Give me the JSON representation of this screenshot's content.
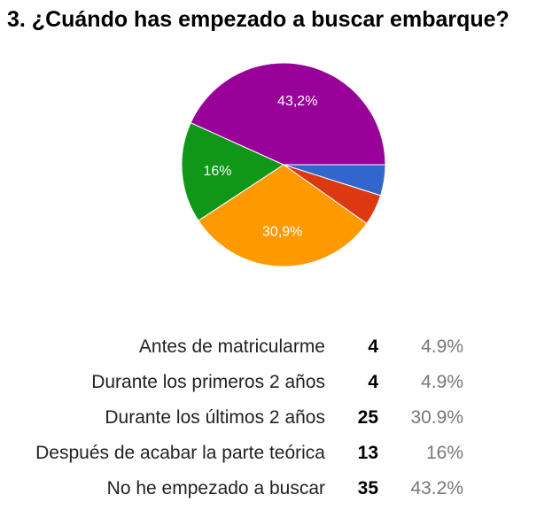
{
  "chart_data": {
    "type": "pie",
    "title": "3. ¿Cuándo has empezado a buscar embarque?",
    "slices": [
      {
        "label": "Antes de matricularme",
        "count": 4,
        "percent_text": "4.9%",
        "slice_label": "",
        "value": 4.9,
        "color": "#3366cc"
      },
      {
        "label": "Durante los primeros 2 años",
        "count": 4,
        "percent_text": "4.9%",
        "slice_label": "",
        "value": 4.9,
        "color": "#dc3912"
      },
      {
        "label": "Durante los últimos 2 años",
        "count": 25,
        "percent_text": "30.9%",
        "slice_label": "30,9%",
        "value": 30.9,
        "color": "#ff9900"
      },
      {
        "label": "Después de acabar la parte teórica",
        "count": 13,
        "percent_text": "16%",
        "slice_label": "16%",
        "value": 16,
        "color": "#109618"
      },
      {
        "label": "No he empezado a buscar",
        "count": 35,
        "percent_text": "43.2%",
        "slice_label": "43,2%",
        "value": 43.2,
        "color": "#990099"
      }
    ]
  }
}
